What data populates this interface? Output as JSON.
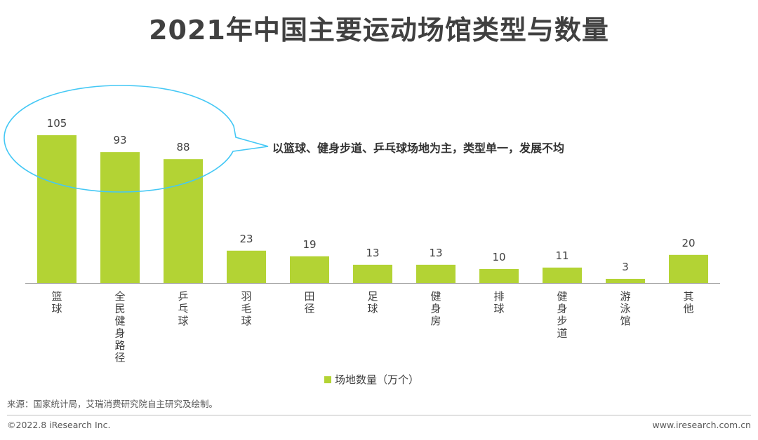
{
  "page": {
    "title": "2021年中国主要运动场馆类型与数量",
    "source": "来源：国家统计局，艾瑞消费研究院自主研究及绘制。",
    "copyright": "©2022.8 iResearch Inc.",
    "website": "www.iresearch.com.cn"
  },
  "chart_data": {
    "type": "bar",
    "title": "2021年中国主要运动场馆类型与数量",
    "categories": [
      "篮球",
      "全民健身路径",
      "乒乓球",
      "羽毛球",
      "田径",
      "足球",
      "健身房",
      "排球",
      "健身步道",
      "游泳馆",
      "其他"
    ],
    "series": [
      {
        "name": "场地数量（万个）",
        "values": [
          105,
          93,
          88,
          23,
          19,
          13,
          13,
          10,
          11,
          3,
          20
        ]
      }
    ],
    "ylim": [
      0,
      105
    ],
    "grid": false,
    "legend_position": "bottom-center",
    "annotation": "以篮球、健身步道、乒乓球场地为主，类型单一，发展不均",
    "bar_color": "#b3d334",
    "callout_color": "#44c8f5"
  }
}
